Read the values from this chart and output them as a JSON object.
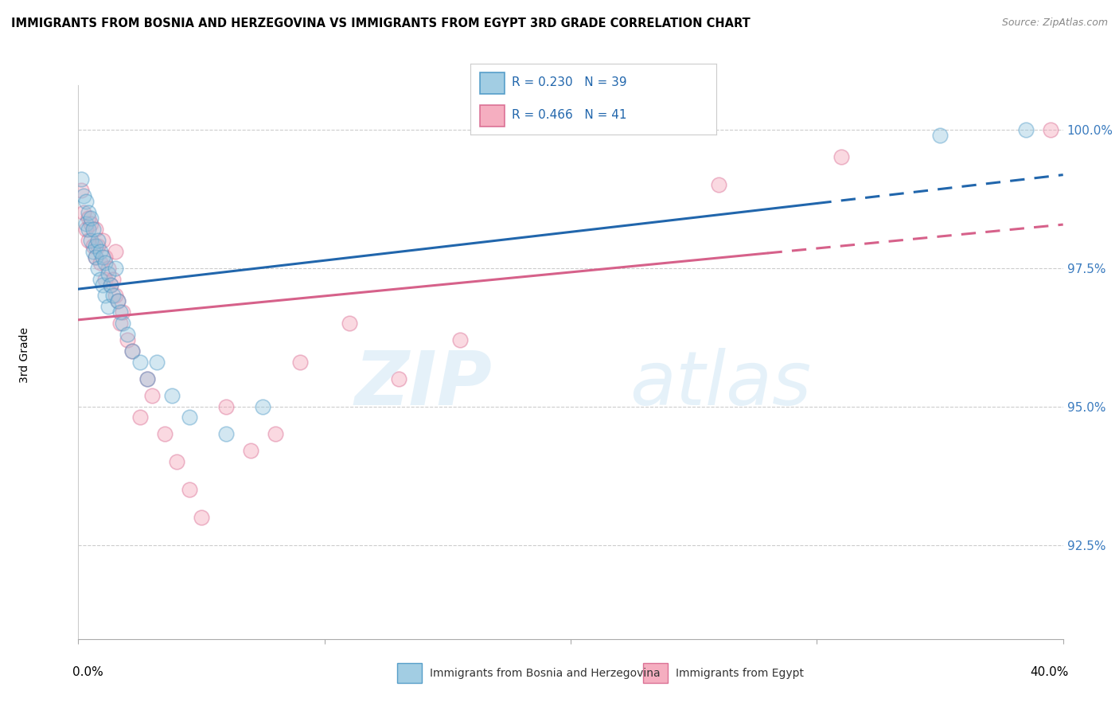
{
  "title": "IMMIGRANTS FROM BOSNIA AND HERZEGOVINA VS IMMIGRANTS FROM EGYPT 3RD GRADE CORRELATION CHART",
  "source": "Source: ZipAtlas.com",
  "ylabel": "3rd Grade",
  "ytick_labels": [
    "92.5%",
    "95.0%",
    "97.5%",
    "100.0%"
  ],
  "ytick_values": [
    0.925,
    0.95,
    0.975,
    1.0
  ],
  "xlim": [
    0.0,
    0.4
  ],
  "ylim": [
    0.908,
    1.008
  ],
  "watermark_zip": "ZIP",
  "watermark_atlas": "atlas",
  "legend_line1": "R = 0.230   N = 39",
  "legend_line2": "R = 0.466   N = 41",
  "legend_bosnia_label": "Immigrants from Bosnia and Herzegovina",
  "legend_egypt_label": "Immigrants from Egypt",
  "color_bosnia_fill": "#92c5de",
  "color_egypt_fill": "#f4a0b5",
  "color_bosnia_line": "#4393c3",
  "color_egypt_line": "#d6618a",
  "color_bosnia_trend": "#2166ac",
  "color_egypt_trend": "#d6618a",
  "bosnia_scatter_x": [
    0.001,
    0.002,
    0.003,
    0.003,
    0.004,
    0.004,
    0.005,
    0.005,
    0.006,
    0.006,
    0.007,
    0.007,
    0.008,
    0.008,
    0.009,
    0.009,
    0.01,
    0.01,
    0.011,
    0.011,
    0.012,
    0.012,
    0.013,
    0.014,
    0.015,
    0.016,
    0.017,
    0.018,
    0.02,
    0.022,
    0.025,
    0.028,
    0.032,
    0.038,
    0.045,
    0.06,
    0.075,
    0.35,
    0.385
  ],
  "bosnia_scatter_y": [
    0.991,
    0.988,
    0.983,
    0.987,
    0.985,
    0.982,
    0.984,
    0.98,
    0.982,
    0.978,
    0.979,
    0.977,
    0.98,
    0.975,
    0.978,
    0.973,
    0.977,
    0.972,
    0.976,
    0.97,
    0.974,
    0.968,
    0.972,
    0.97,
    0.975,
    0.969,
    0.967,
    0.965,
    0.963,
    0.96,
    0.958,
    0.955,
    0.958,
    0.952,
    0.948,
    0.945,
    0.95,
    0.999,
    1.0
  ],
  "egypt_scatter_x": [
    0.001,
    0.002,
    0.003,
    0.004,
    0.004,
    0.005,
    0.006,
    0.007,
    0.007,
    0.008,
    0.009,
    0.01,
    0.011,
    0.011,
    0.012,
    0.013,
    0.014,
    0.015,
    0.015,
    0.016,
    0.017,
    0.018,
    0.02,
    0.022,
    0.025,
    0.028,
    0.03,
    0.035,
    0.04,
    0.045,
    0.05,
    0.06,
    0.07,
    0.08,
    0.09,
    0.11,
    0.13,
    0.155,
    0.26,
    0.31,
    0.395
  ],
  "egypt_scatter_y": [
    0.989,
    0.985,
    0.982,
    0.984,
    0.98,
    0.983,
    0.979,
    0.982,
    0.977,
    0.979,
    0.976,
    0.98,
    0.977,
    0.973,
    0.975,
    0.972,
    0.973,
    0.978,
    0.97,
    0.969,
    0.965,
    0.967,
    0.962,
    0.96,
    0.948,
    0.955,
    0.952,
    0.945,
    0.94,
    0.935,
    0.93,
    0.95,
    0.942,
    0.945,
    0.958,
    0.965,
    0.955,
    0.962,
    0.99,
    0.995,
    1.0
  ],
  "dot_size": 180,
  "dot_alpha": 0.4,
  "trend_dash_start_bosnia": 0.3,
  "trend_dash_start_egypt": 0.28
}
